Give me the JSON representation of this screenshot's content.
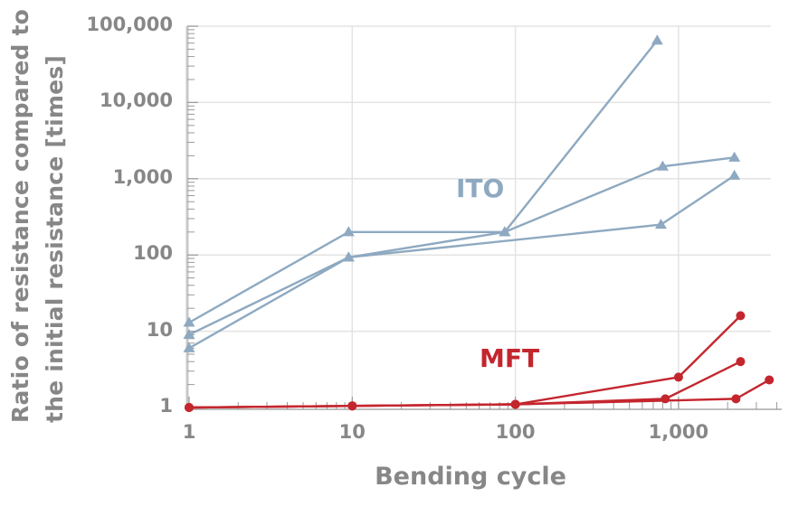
{
  "chart_data": {
    "type": "line",
    "title": "",
    "xlabel": "Bending cycle",
    "ylabel": "Ratio of resistance compared to the initial resistance [times]",
    "ylabel_lines": [
      "Ratio of resistance compared to",
      "the initial resistance [times]"
    ],
    "xscale": "log",
    "yscale": "log",
    "xlim": [
      1,
      4200
    ],
    "ylim": [
      1,
      100000
    ],
    "x_ticks": [
      1,
      10,
      100,
      1000
    ],
    "x_tick_labels": [
      "1",
      "10",
      "100",
      "1,000"
    ],
    "y_ticks": [
      1,
      10,
      100,
      1000,
      10000,
      100000
    ],
    "y_tick_labels": [
      "1",
      "10",
      "100",
      "1,000",
      "10,000",
      "100,000"
    ],
    "grid": true,
    "legend": "none (inline annotations)",
    "annotations": [
      {
        "text": "ITO",
        "color": "#8ea9c1"
      },
      {
        "text": "MFT",
        "color": "#c4262e"
      }
    ],
    "series": [
      {
        "name": "ITO-1",
        "group": "ITO",
        "marker": "triangle",
        "color": "#8ea9c1",
        "x": [
          1,
          9.5,
          86,
          740
        ],
        "y": [
          13,
          200,
          200,
          65000
        ]
      },
      {
        "name": "ITO-2",
        "group": "ITO",
        "marker": "triangle",
        "color": "#8ea9c1",
        "x": [
          1,
          9.5,
          86,
          800,
          2200
        ],
        "y": [
          9,
          93,
          200,
          1450,
          1900
        ]
      },
      {
        "name": "ITO-3",
        "group": "ITO",
        "marker": "triangle",
        "color": "#8ea9c1",
        "x": [
          1,
          9.5,
          780,
          2200
        ],
        "y": [
          6,
          93,
          250,
          1100
        ]
      },
      {
        "name": "MFT-1",
        "group": "MFT",
        "marker": "circle",
        "color": "#c4262e",
        "x": [
          1,
          10,
          100,
          1000,
          2400
        ],
        "y": [
          1,
          1.05,
          1.1,
          2.5,
          16
        ]
      },
      {
        "name": "MFT-2",
        "group": "MFT",
        "marker": "circle",
        "color": "#c4262e",
        "x": [
          1,
          10,
          100,
          830,
          2400
        ],
        "y": [
          1,
          1.05,
          1.1,
          1.3,
          4
        ]
      },
      {
        "name": "MFT-3",
        "group": "MFT",
        "marker": "circle",
        "color": "#c4262e",
        "x": [
          1,
          10,
          100,
          2250,
          3600
        ],
        "y": [
          1,
          1.05,
          1.1,
          1.3,
          2.3
        ]
      }
    ]
  },
  "labels": {
    "ito": "ITO",
    "mft": "MFT"
  },
  "colors": {
    "ito": "#8ea9c1",
    "mft": "#c4262e",
    "axis_text": "#878787",
    "grid": "#e3e3e3",
    "axis": "#c8c8c8"
  }
}
